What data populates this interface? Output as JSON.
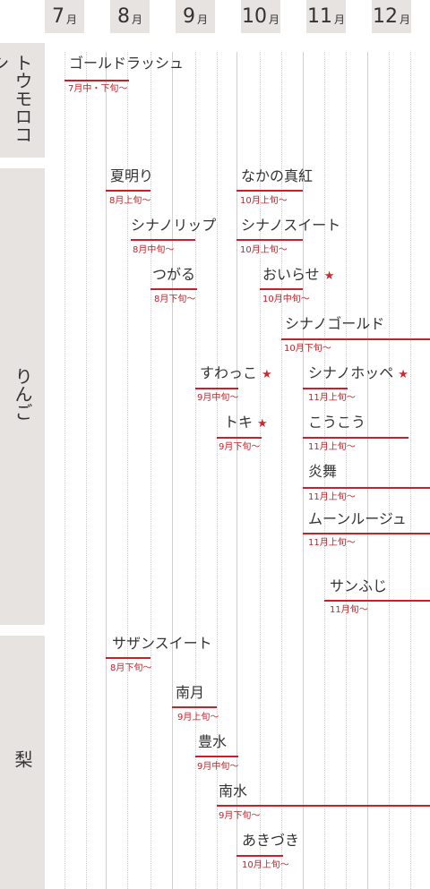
{
  "months": [
    {
      "num": "7",
      "unit": "月"
    },
    {
      "num": "8",
      "unit": "月"
    },
    {
      "num": "9",
      "unit": "月"
    },
    {
      "num": "10",
      "unit": "月"
    },
    {
      "num": "11",
      "unit": "月"
    },
    {
      "num": "12",
      "unit": "月"
    }
  ],
  "categories": [
    {
      "label": "トウモロコシ"
    },
    {
      "label": "りんご"
    },
    {
      "label": "梨"
    }
  ],
  "varieties": [
    {
      "name": "ゴールドラッシュ",
      "period": "7月中・下旬〜",
      "star": ""
    },
    {
      "name": "夏明り",
      "period": "8月上旬〜",
      "star": ""
    },
    {
      "name": "なかの真紅",
      "period": "10月上旬〜",
      "star": ""
    },
    {
      "name": "シナノリップ",
      "period": "8月中旬〜",
      "star": ""
    },
    {
      "name": "シナノスイート",
      "period": "10月上旬〜",
      "star": ""
    },
    {
      "name": "つがる",
      "period": "8月下旬〜",
      "star": ""
    },
    {
      "name": "おいらせ",
      "period": "10月中旬〜",
      "star": "★"
    },
    {
      "name": "シナノゴールド",
      "period": "10月下旬〜",
      "star": ""
    },
    {
      "name": "すわっこ",
      "period": "9月中旬〜",
      "star": "★"
    },
    {
      "name": "シナノホッペ",
      "period": "11月上旬〜",
      "star": "★"
    },
    {
      "name": "トキ",
      "period": "9月下旬〜",
      "star": "★"
    },
    {
      "name": "こうこう",
      "period": "11月上旬〜",
      "star": ""
    },
    {
      "name": "炎舞",
      "period": "11月上旬〜",
      "star": ""
    },
    {
      "name": "ムーンルージュ",
      "period": "11月上旬〜",
      "star": ""
    },
    {
      "name": "サンふじ",
      "period": "11月旬〜",
      "star": ""
    },
    {
      "name": "サザンスイート",
      "period": "8月下旬〜",
      "star": ""
    },
    {
      "name": "南月",
      "period": "9月上旬〜",
      "star": ""
    },
    {
      "name": "豊水",
      "period": "9月中旬〜",
      "star": ""
    },
    {
      "name": "南水",
      "period": "9月下旬〜",
      "star": ""
    },
    {
      "name": "あきづき",
      "period": "10月上旬〜",
      "star": ""
    }
  ],
  "colors": {
    "accent": "#c7202a",
    "header_bg": "#e6e3e1",
    "text": "#333333"
  }
}
